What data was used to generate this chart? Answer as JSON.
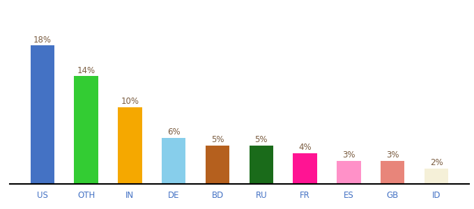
{
  "categories": [
    "US",
    "OTH",
    "IN",
    "DE",
    "BD",
    "RU",
    "FR",
    "ES",
    "GB",
    "ID"
  ],
  "values": [
    18,
    14,
    10,
    6,
    5,
    5,
    4,
    3,
    3,
    2
  ],
  "labels": [
    "18%",
    "14%",
    "10%",
    "6%",
    "5%",
    "5%",
    "4%",
    "3%",
    "3%",
    "2%"
  ],
  "bar_colors": [
    "#4472c4",
    "#33cc33",
    "#f5a800",
    "#87ceeb",
    "#b5601e",
    "#1a6b1a",
    "#ff1493",
    "#ff91c8",
    "#e8857a",
    "#f5f0d8"
  ],
  "ylim": [
    0,
    22
  ],
  "label_color": "#7a5c40",
  "label_fontsize": 8.5,
  "tick_fontsize": 8.5,
  "tick_color": "#4472c4",
  "background_color": "#ffffff",
  "bar_width": 0.55
}
